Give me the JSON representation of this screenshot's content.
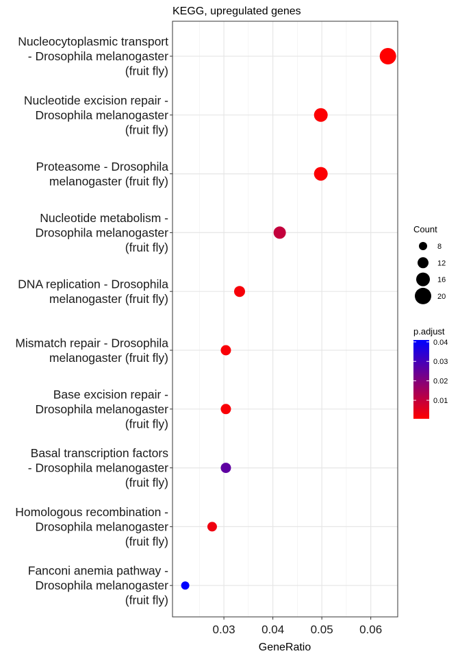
{
  "chart_data": {
    "type": "scatter",
    "title": "KEGG, upregulated genes",
    "xlabel": "GeneRatio",
    "ylabel": "",
    "xlim": [
      0.0195,
      0.0655
    ],
    "xticks": [
      0.03,
      0.04,
      0.05,
      0.06
    ],
    "xtick_labels": [
      "0.03",
      "0.04",
      "0.05",
      "0.06"
    ],
    "grid": true,
    "categories": [
      {
        "label_lines": [
          "Nucleocytoplasmic transport",
          "- Drosophila melanogaster",
          "(fruit fly)"
        ],
        "x": 0.0635,
        "count": 20,
        "p_adjust": 0.0005
      },
      {
        "label_lines": [
          "Nucleotide excision repair -",
          "Drosophila melanogaster",
          "(fruit fly)"
        ],
        "x": 0.0498,
        "count": 16,
        "p_adjust": 0.001
      },
      {
        "label_lines": [
          "Proteasome - Drosophila",
          "melanogaster (fruit fly)"
        ],
        "x": 0.0498,
        "count": 16,
        "p_adjust": 0.001
      },
      {
        "label_lines": [
          "Nucleotide metabolism -",
          "Drosophila melanogaster",
          "(fruit fly)"
        ],
        "x": 0.0414,
        "count": 14,
        "p_adjust": 0.01
      },
      {
        "label_lines": [
          "DNA replication - Drosophila",
          "melanogaster (fruit fly)"
        ],
        "x": 0.0332,
        "count": 12,
        "p_adjust": 0.002
      },
      {
        "label_lines": [
          "Mismatch repair - Drosophila",
          "melanogaster (fruit fly)"
        ],
        "x": 0.0304,
        "count": 11,
        "p_adjust": 0.0015
      },
      {
        "label_lines": [
          "Base excision repair -",
          "Drosophila melanogaster",
          "(fruit fly)"
        ],
        "x": 0.0304,
        "count": 11,
        "p_adjust": 0.0015
      },
      {
        "label_lines": [
          "Basal transcription factors",
          "- Drosophila melanogaster",
          "(fruit fly)"
        ],
        "x": 0.0304,
        "count": 11,
        "p_adjust": 0.026
      },
      {
        "label_lines": [
          "Homologous recombination -",
          "Drosophila melanogaster",
          "(fruit fly)"
        ],
        "x": 0.0276,
        "count": 10,
        "p_adjust": 0.003
      },
      {
        "label_lines": [
          "Fanconi anemia pathway -",
          "Drosophila melanogaster",
          "(fruit fly)"
        ],
        "x": 0.0221,
        "count": 8,
        "p_adjust": 0.041
      }
    ],
    "legend_size": {
      "title": "Count",
      "entries": [
        {
          "label": "8",
          "value": 8
        },
        {
          "label": "12",
          "value": 12
        },
        {
          "label": "16",
          "value": 16
        },
        {
          "label": "20",
          "value": 20
        }
      ],
      "placement": "right"
    },
    "legend_color": {
      "title": "p.adjust",
      "range": [
        0.0005,
        0.041
      ],
      "ticks": [
        {
          "label": "0.04",
          "value": 0.04
        },
        {
          "label": "0.03",
          "value": 0.03
        },
        {
          "label": "0.02",
          "value": 0.02
        },
        {
          "label": "0.01",
          "value": 0.01
        }
      ],
      "low_color": "#ff0000",
      "high_color": "#0000ff",
      "placement": "right"
    }
  }
}
